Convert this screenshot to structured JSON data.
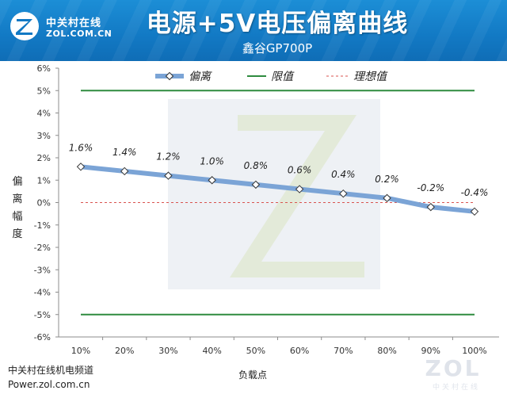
{
  "header": {
    "logo_cn": "中关村在线",
    "logo_en": "ZOL.COM.CN",
    "title": "电源+5V电压偏离曲线",
    "subtitle": "鑫谷GP700P"
  },
  "footer": {
    "channel": "中关村在线机电频道",
    "url": "Power.zol.com.cn",
    "watermark": "ZOL",
    "watermark_sub": "中关村在线"
  },
  "colors": {
    "header_bg": "#1279c4",
    "deviation_line": "#7ba4d6",
    "limit_line": "#2e8b3f",
    "ideal_line": "#d9534f"
  },
  "chart_data": {
    "type": "line",
    "xlabel": "负载点",
    "ylabel": "偏离幅度",
    "categories": [
      "10%",
      "20%",
      "30%",
      "40%",
      "50%",
      "60%",
      "70%",
      "80%",
      "90%",
      "100%"
    ],
    "ylim": [
      -6,
      6
    ],
    "yticks": [
      "6%",
      "5%",
      "4%",
      "3%",
      "2%",
      "1%",
      "0%",
      "-1%",
      "-2%",
      "-3%",
      "-4%",
      "-5%",
      "-6%"
    ],
    "ytick_values": [
      6,
      5,
      4,
      3,
      2,
      1,
      0,
      -1,
      -2,
      -3,
      -4,
      -5,
      -6
    ],
    "grid": false,
    "legend_position": "top",
    "series": [
      {
        "name": "偏离",
        "values": [
          1.6,
          1.4,
          1.2,
          1.0,
          0.8,
          0.6,
          0.4,
          0.2,
          -0.2,
          -0.4
        ],
        "labels": [
          "1.6%",
          "1.4%",
          "1.2%",
          "1.0%",
          "0.8%",
          "0.6%",
          "0.4%",
          "0.2%",
          "-0.2%",
          "-0.4%"
        ],
        "color": "#7ba4d6",
        "marker": "diamond"
      },
      {
        "name": "限值",
        "values_upper": 5,
        "values_lower": -5,
        "color": "#2e8b3f"
      },
      {
        "name": "理想值",
        "value": 0,
        "color": "#d9534f",
        "style": "dashed"
      }
    ]
  }
}
